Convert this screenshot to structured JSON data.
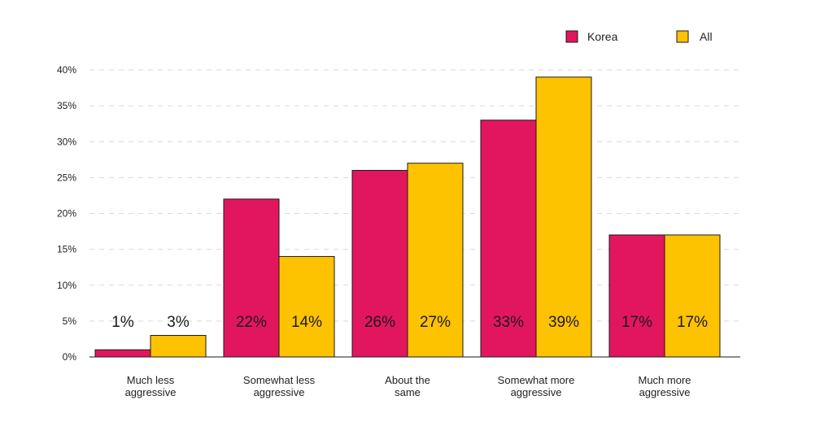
{
  "chart_data": {
    "type": "bar",
    "categories": [
      [
        "Much less",
        "aggressive"
      ],
      [
        "Somewhat less",
        "aggressive"
      ],
      [
        "About the",
        "same"
      ],
      [
        "Somewhat more",
        "aggressive"
      ],
      [
        "Much more",
        "aggressive"
      ]
    ],
    "series": [
      {
        "name": "Korea",
        "color": "#e2165e",
        "values": [
          1,
          22,
          26,
          33,
          17
        ],
        "labels": [
          "1%",
          "22%",
          "26%",
          "33%",
          "17%"
        ]
      },
      {
        "name": "All",
        "color": "#fdc200",
        "values": [
          3,
          14,
          27,
          39,
          17
        ],
        "labels": [
          "3%",
          "14%",
          "27%",
          "39%",
          "17%"
        ]
      }
    ],
    "ylim": [
      0,
      40
    ],
    "yticks": [
      0,
      5,
      10,
      15,
      20,
      25,
      30,
      35,
      40
    ],
    "ytick_labels": [
      "0%",
      "5%",
      "10%",
      "15%",
      "20%",
      "25%",
      "30%",
      "35%",
      "40%"
    ],
    "grid": true,
    "legend_position": "top-right",
    "title": "",
    "xlabel": "",
    "ylabel": ""
  }
}
